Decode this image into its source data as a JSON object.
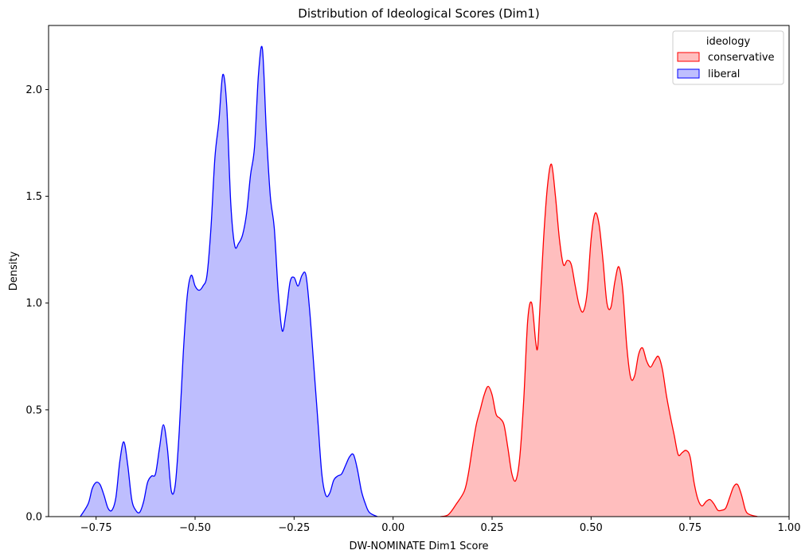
{
  "chart_data": {
    "type": "area",
    "title": "Distribution of Ideological Scores (Dim1)",
    "xlabel": "DW-NOMINATE Dim1 Score",
    "ylabel": "Density",
    "xlim": [
      -0.87,
      1.0
    ],
    "ylim": [
      0,
      2.3
    ],
    "xticks": [
      -0.75,
      -0.5,
      -0.25,
      0.0,
      0.25,
      0.5,
      0.75,
      1.0
    ],
    "xtick_labels": [
      "−0.75",
      "−0.50",
      "−0.25",
      "0.00",
      "0.25",
      "0.50",
      "0.75",
      "1.00"
    ],
    "yticks": [
      0.0,
      0.5,
      1.0,
      1.5,
      2.0
    ],
    "ytick_labels": [
      "0.0",
      "0.5",
      "1.0",
      "1.5",
      "2.0"
    ],
    "grid": false,
    "legend": {
      "title": "ideology",
      "placement": "top-right"
    },
    "series": [
      {
        "name": "conservative",
        "color": "#ff0000",
        "fill": "#ffbebe",
        "points": [
          [
            0.12,
            0.0
          ],
          [
            0.14,
            0.01
          ],
          [
            0.16,
            0.06
          ],
          [
            0.18,
            0.12
          ],
          [
            0.19,
            0.2
          ],
          [
            0.2,
            0.32
          ],
          [
            0.21,
            0.43
          ],
          [
            0.22,
            0.5
          ],
          [
            0.23,
            0.57
          ],
          [
            0.24,
            0.61
          ],
          [
            0.25,
            0.57
          ],
          [
            0.26,
            0.48
          ],
          [
            0.27,
            0.46
          ],
          [
            0.28,
            0.43
          ],
          [
            0.29,
            0.32
          ],
          [
            0.3,
            0.2
          ],
          [
            0.31,
            0.17
          ],
          [
            0.32,
            0.28
          ],
          [
            0.33,
            0.55
          ],
          [
            0.34,
            0.92
          ],
          [
            0.35,
            1.0
          ],
          [
            0.36,
            0.82
          ],
          [
            0.365,
            0.79
          ],
          [
            0.37,
            0.95
          ],
          [
            0.38,
            1.3
          ],
          [
            0.39,
            1.55
          ],
          [
            0.4,
            1.65
          ],
          [
            0.41,
            1.5
          ],
          [
            0.42,
            1.3
          ],
          [
            0.43,
            1.18
          ],
          [
            0.44,
            1.2
          ],
          [
            0.45,
            1.18
          ],
          [
            0.46,
            1.08
          ],
          [
            0.47,
            0.99
          ],
          [
            0.48,
            0.96
          ],
          [
            0.49,
            1.05
          ],
          [
            0.5,
            1.3
          ],
          [
            0.51,
            1.42
          ],
          [
            0.52,
            1.37
          ],
          [
            0.53,
            1.2
          ],
          [
            0.54,
            1.0
          ],
          [
            0.55,
            0.98
          ],
          [
            0.56,
            1.1
          ],
          [
            0.57,
            1.17
          ],
          [
            0.58,
            1.06
          ],
          [
            0.59,
            0.8
          ],
          [
            0.6,
            0.65
          ],
          [
            0.61,
            0.66
          ],
          [
            0.62,
            0.76
          ],
          [
            0.63,
            0.79
          ],
          [
            0.64,
            0.73
          ],
          [
            0.65,
            0.7
          ],
          [
            0.66,
            0.73
          ],
          [
            0.67,
            0.75
          ],
          [
            0.68,
            0.69
          ],
          [
            0.69,
            0.57
          ],
          [
            0.7,
            0.47
          ],
          [
            0.71,
            0.38
          ],
          [
            0.72,
            0.29
          ],
          [
            0.73,
            0.3
          ],
          [
            0.74,
            0.31
          ],
          [
            0.75,
            0.28
          ],
          [
            0.76,
            0.16
          ],
          [
            0.77,
            0.08
          ],
          [
            0.78,
            0.05
          ],
          [
            0.79,
            0.07
          ],
          [
            0.8,
            0.08
          ],
          [
            0.81,
            0.06
          ],
          [
            0.82,
            0.03
          ],
          [
            0.83,
            0.03
          ],
          [
            0.84,
            0.04
          ],
          [
            0.85,
            0.09
          ],
          [
            0.86,
            0.14
          ],
          [
            0.87,
            0.15
          ],
          [
            0.88,
            0.1
          ],
          [
            0.89,
            0.03
          ],
          [
            0.9,
            0.01
          ],
          [
            0.92,
            0.0
          ]
        ]
      },
      {
        "name": "liberal",
        "color": "#0000ff",
        "fill": "#bebefe",
        "points": [
          [
            -0.79,
            0.0
          ],
          [
            -0.77,
            0.06
          ],
          [
            -0.76,
            0.13
          ],
          [
            -0.75,
            0.16
          ],
          [
            -0.74,
            0.15
          ],
          [
            -0.73,
            0.1
          ],
          [
            -0.72,
            0.04
          ],
          [
            -0.71,
            0.03
          ],
          [
            -0.7,
            0.09
          ],
          [
            -0.69,
            0.26
          ],
          [
            -0.68,
            0.35
          ],
          [
            -0.67,
            0.24
          ],
          [
            -0.66,
            0.08
          ],
          [
            -0.65,
            0.03
          ],
          [
            -0.64,
            0.02
          ],
          [
            -0.63,
            0.07
          ],
          [
            -0.62,
            0.16
          ],
          [
            -0.61,
            0.19
          ],
          [
            -0.6,
            0.2
          ],
          [
            -0.59,
            0.32
          ],
          [
            -0.58,
            0.43
          ],
          [
            -0.57,
            0.32
          ],
          [
            -0.56,
            0.12
          ],
          [
            -0.55,
            0.15
          ],
          [
            -0.54,
            0.4
          ],
          [
            -0.53,
            0.76
          ],
          [
            -0.52,
            1.03
          ],
          [
            -0.51,
            1.13
          ],
          [
            -0.5,
            1.08
          ],
          [
            -0.49,
            1.06
          ],
          [
            -0.48,
            1.08
          ],
          [
            -0.47,
            1.13
          ],
          [
            -0.46,
            1.35
          ],
          [
            -0.45,
            1.68
          ],
          [
            -0.44,
            1.85
          ],
          [
            -0.43,
            2.07
          ],
          [
            -0.42,
            1.92
          ],
          [
            -0.41,
            1.47
          ],
          [
            -0.4,
            1.27
          ],
          [
            -0.39,
            1.28
          ],
          [
            -0.38,
            1.32
          ],
          [
            -0.37,
            1.42
          ],
          [
            -0.36,
            1.6
          ],
          [
            -0.35,
            1.73
          ],
          [
            -0.34,
            2.07
          ],
          [
            -0.33,
            2.19
          ],
          [
            -0.32,
            1.8
          ],
          [
            -0.31,
            1.5
          ],
          [
            -0.3,
            1.35
          ],
          [
            -0.29,
            1.05
          ],
          [
            -0.28,
            0.87
          ],
          [
            -0.27,
            0.96
          ],
          [
            -0.26,
            1.1
          ],
          [
            -0.25,
            1.12
          ],
          [
            -0.24,
            1.08
          ],
          [
            -0.23,
            1.13
          ],
          [
            -0.22,
            1.13
          ],
          [
            -0.21,
            0.95
          ],
          [
            -0.2,
            0.7
          ],
          [
            -0.19,
            0.45
          ],
          [
            -0.18,
            0.2
          ],
          [
            -0.17,
            0.1
          ],
          [
            -0.16,
            0.11
          ],
          [
            -0.15,
            0.17
          ],
          [
            -0.14,
            0.19
          ],
          [
            -0.13,
            0.2
          ],
          [
            -0.12,
            0.24
          ],
          [
            -0.11,
            0.28
          ],
          [
            -0.1,
            0.29
          ],
          [
            -0.09,
            0.22
          ],
          [
            -0.08,
            0.12
          ],
          [
            -0.07,
            0.06
          ],
          [
            -0.06,
            0.02
          ],
          [
            -0.04,
            0.0
          ]
        ]
      }
    ]
  }
}
